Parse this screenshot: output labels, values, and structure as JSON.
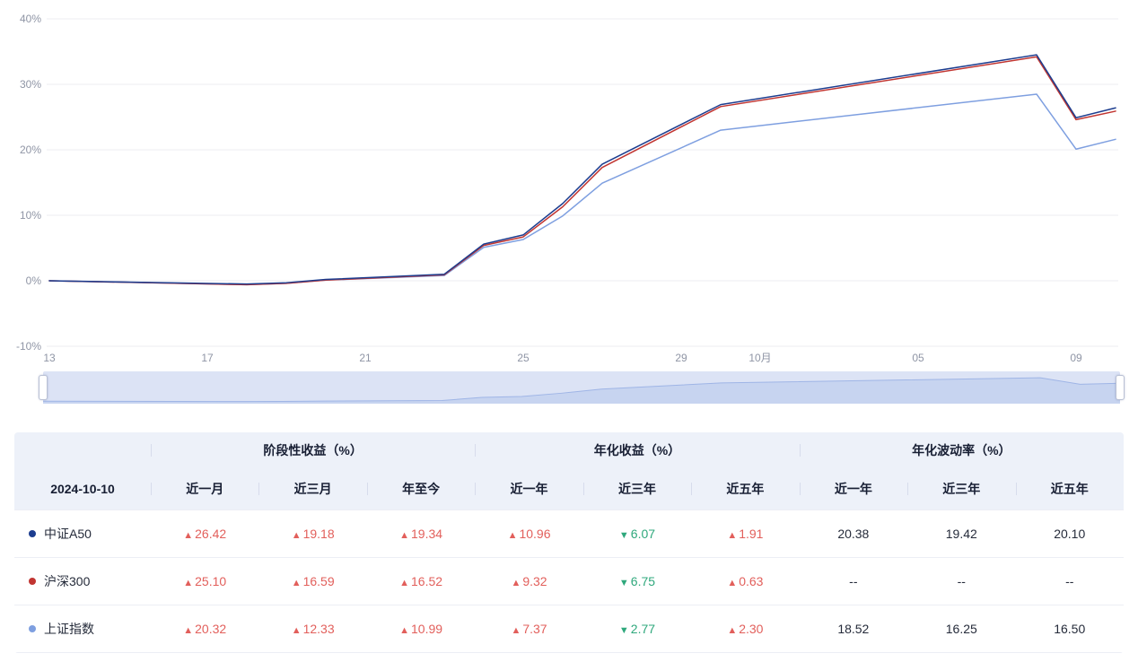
{
  "chart_data": {
    "type": "line",
    "title": "",
    "x_dates": [
      "09-13",
      "09-18",
      "09-19",
      "09-20",
      "09-23",
      "09-24",
      "09-25",
      "09-26",
      "09-27",
      "09-30",
      "10-08",
      "10-09",
      "10-10"
    ],
    "x_days": [
      0,
      5,
      6,
      7,
      10,
      11,
      12,
      13,
      14,
      17,
      25,
      26,
      27
    ],
    "x_total_days": 27,
    "x_ticks": [
      {
        "label": "13",
        "day": 0
      },
      {
        "label": "17",
        "day": 4
      },
      {
        "label": "21",
        "day": 8
      },
      {
        "label": "25",
        "day": 12
      },
      {
        "label": "29",
        "day": 16
      },
      {
        "label": "10月",
        "day": 18
      },
      {
        "label": "05",
        "day": 22
      },
      {
        "label": "09",
        "day": 26
      }
    ],
    "y_min": -10,
    "y_max": 40,
    "y_tick_values": [
      40,
      30,
      20,
      10,
      0,
      -10
    ],
    "y_tick_suffix": "%",
    "grid": true,
    "legend_position": "none (series identified by dots in table below)",
    "series": [
      {
        "name": "中证A50",
        "color": "#1c3d8f",
        "values": [
          0,
          -0.5,
          -0.3,
          0.2,
          1.0,
          5.6,
          7.0,
          11.8,
          17.8,
          26.9,
          34.5,
          24.9,
          26.4
        ]
      },
      {
        "name": "沪深300",
        "color": "#c13531",
        "values": [
          0,
          -0.6,
          -0.4,
          0.1,
          0.9,
          5.4,
          6.7,
          11.3,
          17.3,
          26.6,
          34.2,
          24.6,
          25.9
        ]
      },
      {
        "name": "上证指数",
        "color": "#7e9fe0",
        "values": [
          0,
          -0.6,
          -0.4,
          0.1,
          0.8,
          5.1,
          6.3,
          9.9,
          14.9,
          23.0,
          28.5,
          20.1,
          21.6
        ]
      }
    ],
    "slider": {
      "background": "#dce3f5",
      "area_fill": "#c7d4f0",
      "area_stroke": "#9fb5e6"
    }
  },
  "table": {
    "date": "2024-10-10",
    "groups": [
      {
        "label": "阶段性收益（%）",
        "span": 3
      },
      {
        "label": "年化收益（%）",
        "span": 3
      },
      {
        "label": "年化波动率（%）",
        "span": 3
      }
    ],
    "columns": [
      "近一月",
      "近三月",
      "年至今",
      "近一年",
      "近三年",
      "近五年",
      "近一年",
      "近三年",
      "近五年"
    ],
    "rows": [
      {
        "name": "中证A50",
        "dot_color": "#1c3d8f",
        "cells": [
          {
            "value": "26.42",
            "trend": "up"
          },
          {
            "value": "19.18",
            "trend": "up"
          },
          {
            "value": "19.34",
            "trend": "up"
          },
          {
            "value": "10.96",
            "trend": "up"
          },
          {
            "value": "6.07",
            "trend": "down"
          },
          {
            "value": "1.91",
            "trend": "up"
          },
          {
            "value": "20.38",
            "trend": "none"
          },
          {
            "value": "19.42",
            "trend": "none"
          },
          {
            "value": "20.10",
            "trend": "none"
          }
        ]
      },
      {
        "name": "沪深300",
        "dot_color": "#c13531",
        "cells": [
          {
            "value": "25.10",
            "trend": "up"
          },
          {
            "value": "16.59",
            "trend": "up"
          },
          {
            "value": "16.52",
            "trend": "up"
          },
          {
            "value": "9.32",
            "trend": "up"
          },
          {
            "value": "6.75",
            "trend": "down"
          },
          {
            "value": "0.63",
            "trend": "up"
          },
          {
            "value": "--",
            "trend": "none"
          },
          {
            "value": "--",
            "trend": "none"
          },
          {
            "value": "--",
            "trend": "none"
          }
        ]
      },
      {
        "name": "上证指数",
        "dot_color": "#7e9fe0",
        "cells": [
          {
            "value": "20.32",
            "trend": "up"
          },
          {
            "value": "12.33",
            "trend": "up"
          },
          {
            "value": "10.99",
            "trend": "up"
          },
          {
            "value": "7.37",
            "trend": "up"
          },
          {
            "value": "2.77",
            "trend": "down"
          },
          {
            "value": "2.30",
            "trend": "up"
          },
          {
            "value": "18.52",
            "trend": "none"
          },
          {
            "value": "16.25",
            "trend": "none"
          },
          {
            "value": "16.50",
            "trend": "none"
          }
        ]
      }
    ],
    "up_symbol": "▲",
    "down_symbol": "▼",
    "up_color": "#e25f5b",
    "down_color": "#2fa87c",
    "axis_label_color": "#8f95a5",
    "gridline_color": "#ededf2"
  }
}
